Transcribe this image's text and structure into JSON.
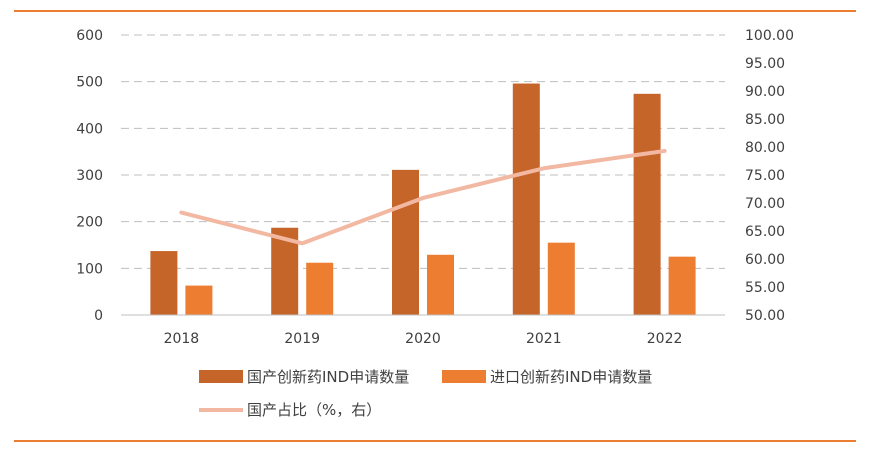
{
  "chart_data": {
    "type": "bar",
    "categories": [
      "2018",
      "2019",
      "2020",
      "2021",
      "2022"
    ],
    "series": [
      {
        "name": "国产创新药IND申请数量",
        "type": "bar",
        "axis": "left",
        "color": "#c5652a",
        "values": [
          137,
          187,
          311,
          496,
          474
        ]
      },
      {
        "name": "进口创新药IND申请数量",
        "type": "bar",
        "axis": "left",
        "color": "#ed7d31",
        "values": [
          63,
          112,
          129,
          155,
          125
        ]
      },
      {
        "name": "国产占比（%，右）",
        "type": "line",
        "axis": "right",
        "color": "#f2b8a2",
        "values": [
          68.3,
          62.8,
          70.9,
          76.2,
          79.3
        ]
      }
    ],
    "ylim_left": [
      0,
      600
    ],
    "yticks_left": [
      "0",
      "100",
      "200",
      "300",
      "400",
      "500",
      "600"
    ],
    "ylim_right": [
      50,
      100
    ],
    "yticks_right": [
      "50.00",
      "55.00",
      "60.00",
      "65.00",
      "70.00",
      "75.00",
      "80.00",
      "85.00",
      "90.00",
      "95.00",
      "100.00"
    ],
    "grid": "horizontal-dashed",
    "legend_position": "bottom",
    "rule_color": "#ed7d31"
  }
}
